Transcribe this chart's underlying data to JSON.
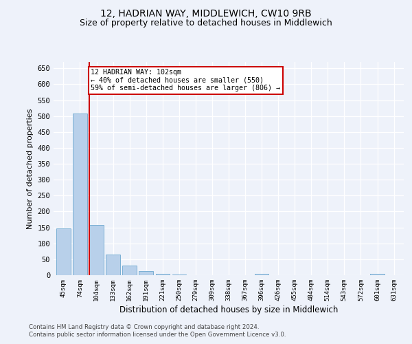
{
  "title": "12, HADRIAN WAY, MIDDLEWICH, CW10 9RB",
  "subtitle": "Size of property relative to detached houses in Middlewich",
  "xlabel": "Distribution of detached houses by size in Middlewich",
  "ylabel": "Number of detached properties",
  "categories": [
    "45sqm",
    "74sqm",
    "104sqm",
    "133sqm",
    "162sqm",
    "191sqm",
    "221sqm",
    "250sqm",
    "279sqm",
    "309sqm",
    "338sqm",
    "367sqm",
    "396sqm",
    "426sqm",
    "455sqm",
    "484sqm",
    "514sqm",
    "543sqm",
    "572sqm",
    "601sqm",
    "631sqm"
  ],
  "values": [
    148,
    507,
    158,
    65,
    30,
    12,
    5,
    3,
    0,
    0,
    0,
    0,
    5,
    0,
    0,
    0,
    0,
    0,
    0,
    4,
    0
  ],
  "bar_color": "#b8d0ea",
  "bar_edge_color": "#7aafd4",
  "highlight_bar_index": 2,
  "annotation_text": "12 HADRIAN WAY: 102sqm\n← 40% of detached houses are smaller (550)\n59% of semi-detached houses are larger (806) →",
  "annotation_box_color": "#cc0000",
  "ylim": [
    0,
    670
  ],
  "yticks": [
    0,
    50,
    100,
    150,
    200,
    250,
    300,
    350,
    400,
    450,
    500,
    550,
    600,
    650
  ],
  "background_color": "#eef2fa",
  "plot_bg_color": "#eef2fa",
  "footer_line1": "Contains HM Land Registry data © Crown copyright and database right 2024.",
  "footer_line2": "Contains public sector information licensed under the Open Government Licence v3.0.",
  "grid_color": "#ffffff",
  "title_fontsize": 10,
  "subtitle_fontsize": 9
}
